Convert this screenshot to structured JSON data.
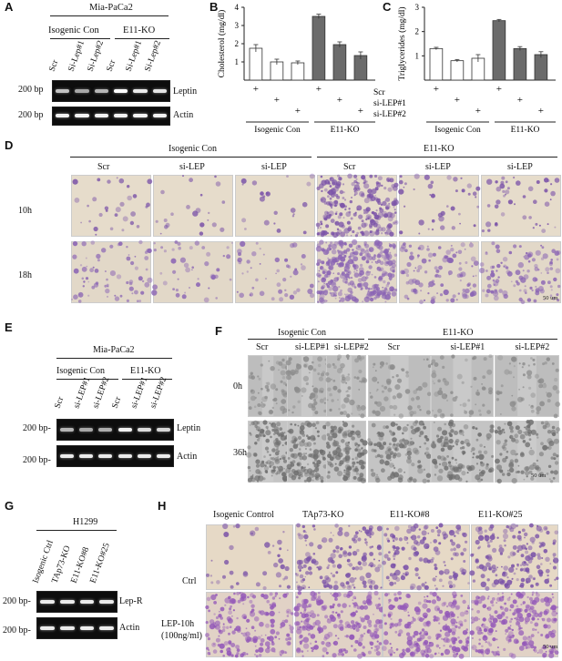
{
  "panelA": {
    "letter": "A",
    "cell_line": "Mia-PaCa2",
    "group1": "Isogenic Con",
    "group2": "E11-KO",
    "lanes": [
      "Scr",
      "Si-Lep#1",
      "Si-Lep#2",
      "Scr",
      "Si-Lep#1",
      "Si-Lep#2"
    ],
    "marker": "200 bp",
    "rows": [
      "Leptin",
      "Actin"
    ],
    "leptin_band_intensity": [
      0.55,
      0.35,
      0.45,
      1.0,
      0.85,
      0.8
    ],
    "actin_band_intensity": [
      0.9,
      0.9,
      0.9,
      0.9,
      0.9,
      0.9
    ]
  },
  "panelB": {
    "letter": "B",
    "ylabel": "Cholesterol (mg/dl)",
    "group1": "Isogenic Con",
    "group2": "E11-KO"
  },
  "panelC": {
    "letter": "C",
    "ylabel": "Triglycerides (mg/dl)",
    "row_labels": [
      "Scr",
      "si-LEP#1",
      "si-LEP#2"
    ],
    "group1": "Isogenic Con",
    "group2": "E11-KO"
  },
  "panelD": {
    "letter": "D",
    "group1": "Isogenic Con",
    "group2": "E11-KO",
    "columns": [
      "Scr",
      "si-LEP",
      "si-LEP",
      "Scr",
      "si-LEP",
      "si-LEP"
    ],
    "rows": [
      "10h",
      "18h"
    ],
    "scale": "50 um"
  },
  "panelE": {
    "letter": "E",
    "cell_line": "Mia-PaCa2",
    "group1": "Isogenic Con",
    "group2": "E11-KO",
    "lanes": [
      "Scr",
      "si-LEP#1",
      "si-LEP#2",
      "Scr",
      "si-LEP#1",
      "si-LEP#2"
    ],
    "marker": "200 bp-",
    "rows": [
      "Leptin",
      "Actin"
    ]
  },
  "panelF": {
    "letter": "F",
    "group1": "Isogenic Con",
    "group2": "E11-KO",
    "columns": [
      "Scr",
      "si-LEP#1",
      "si-LEP#2",
      "Scr",
      "si-LEP#1",
      "si-LEP#2"
    ],
    "rows": [
      "0h",
      "36h"
    ],
    "scale": "50 um"
  },
  "panelG": {
    "letter": "G",
    "cell_line": "H1299",
    "lanes": [
      "Isogenic Ctrl",
      "TAp73-KO",
      "E11-KO#8",
      "E11-KO#25"
    ],
    "marker": "200 bp-",
    "rows": [
      "Lep-R",
      "Actin"
    ]
  },
  "panelH": {
    "letter": "H",
    "columns": [
      "Isogenic Control",
      "TAp73-KO",
      "E11-KO#8",
      "E11-KO#25"
    ],
    "rows": [
      "Ctrl",
      "LEP-10h",
      "(100ng/ml)"
    ],
    "scale": "50 um"
  },
  "chart_data": [
    {
      "type": "bar",
      "panel": "B",
      "ylabel": "Cholesterol (mg/dl)",
      "categories": [
        "Isogenic Con Scr",
        "Isogenic Con si-LEP#1",
        "Isogenic Con si-LEP#2",
        "E11-KO Scr",
        "E11-KO si-LEP#1",
        "E11-KO si-LEP#2"
      ],
      "values": [
        1.75,
        1.0,
        0.95,
        3.5,
        1.95,
        1.35
      ],
      "errors": [
        0.2,
        0.15,
        0.1,
        0.12,
        0.15,
        0.2
      ],
      "ylim": [
        0,
        4
      ],
      "yticks": [
        1,
        2,
        3,
        4
      ],
      "bar_colors": [
        "#ffffff",
        "#ffffff",
        "#ffffff",
        "#6b6b6b",
        "#6b6b6b",
        "#6b6b6b"
      ]
    },
    {
      "type": "bar",
      "panel": "C",
      "ylabel": "Triglycerides (mg/dl)",
      "categories": [
        "Isogenic Con Scr",
        "Isogenic Con si-LEP#1",
        "Isogenic Con si-LEP#2",
        "E11-KO Scr",
        "E11-KO si-LEP#1",
        "E11-KO si-LEP#2"
      ],
      "values": [
        1.3,
        0.8,
        0.9,
        2.45,
        1.3,
        1.05
      ],
      "errors": [
        0.05,
        0.05,
        0.15,
        0.05,
        0.08,
        0.12
      ],
      "ylim": [
        0,
        3
      ],
      "yticks": [
        1,
        2,
        3
      ],
      "bar_colors": [
        "#ffffff",
        "#ffffff",
        "#ffffff",
        "#6b6b6b",
        "#6b6b6b",
        "#6b6b6b"
      ]
    }
  ]
}
